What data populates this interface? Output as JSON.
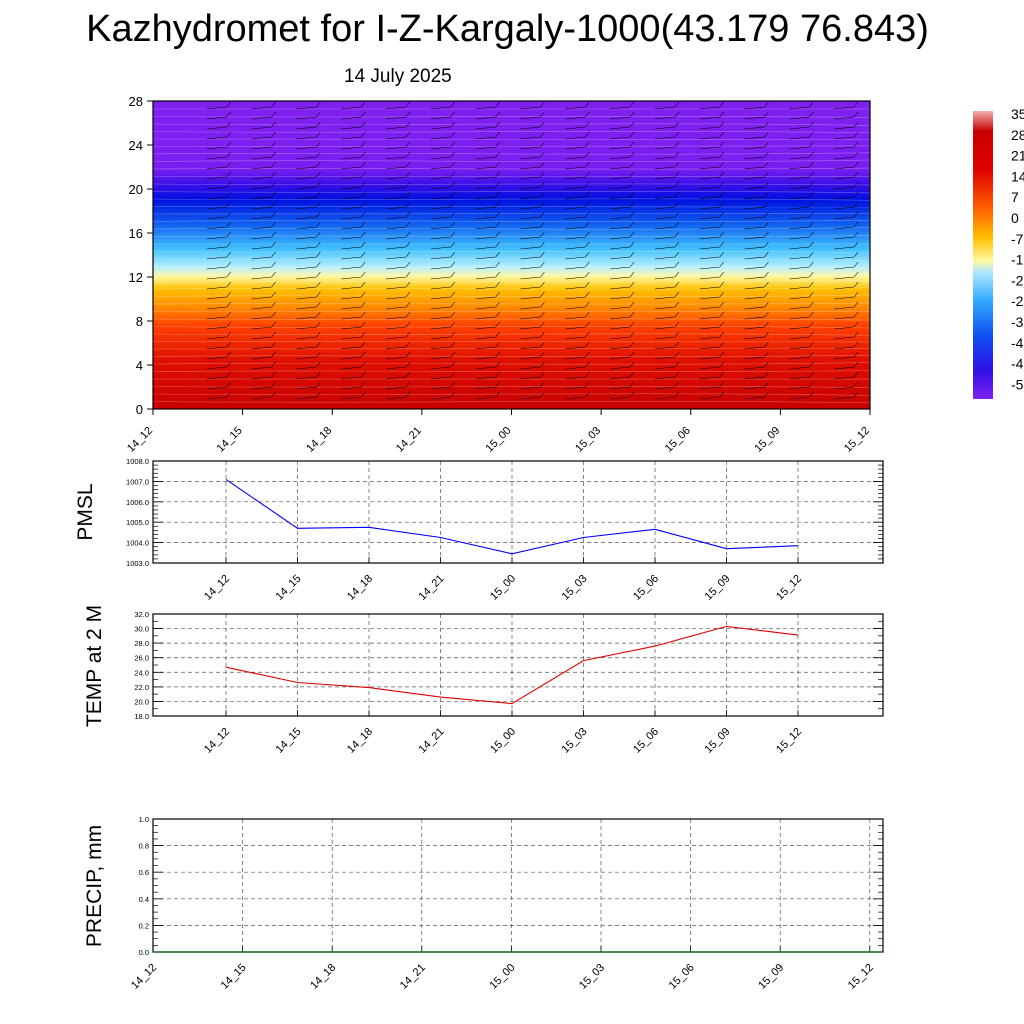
{
  "title": "Kazhydromet for I-Z-Kargaly-1000(43.179 76.843)",
  "subtitle": "14 July 2025",
  "colors": {
    "pmsl_line": "#0000ff",
    "temp_line": "#e00000",
    "precip_line": "#006400"
  },
  "chart_data": [
    {
      "type": "heatmap",
      "name": "temperature cross-section",
      "x_ticks": [
        "14_12",
        "14_15",
        "14_18",
        "14_21",
        "15_00",
        "15_03",
        "15_06",
        "15_09",
        "15_12"
      ],
      "y_ticks": [
        "0",
        "4",
        "8",
        "12",
        "16",
        "20",
        "24",
        "28"
      ],
      "ylim": [
        0,
        28
      ],
      "colorbar_labels": [
        "35",
        "28",
        "21",
        "14",
        "7",
        "0",
        "-7",
        "-1",
        "-2",
        "-2",
        "-3",
        "-4",
        "-4",
        "-5"
      ],
      "grid": false
    },
    {
      "type": "line",
      "ylabel": "PMSL",
      "ylim": [
        1003.0,
        1008.0
      ],
      "y_ticks": [
        "1003.0",
        "1004.0",
        "1005.0",
        "1006.0",
        "1007.0",
        "1008.0"
      ],
      "x_ticks": [
        "14_12",
        "14_15",
        "14_18",
        "14_21",
        "15_00",
        "15_03",
        "15_06",
        "15_09",
        "15_12"
      ],
      "values": [
        1007.1,
        1004.7,
        1004.75,
        1004.25,
        1003.45,
        1004.25,
        1004.65,
        1003.7,
        1003.85
      ],
      "grid": true
    },
    {
      "type": "line",
      "ylabel": "TEMP at 2 M",
      "ylim": [
        18.0,
        32.0
      ],
      "y_ticks": [
        "18.0",
        "20.0",
        "22.0",
        "24.0",
        "26.0",
        "28.0",
        "30.0",
        "32.0"
      ],
      "x_ticks": [
        "14_12",
        "14_15",
        "14_18",
        "14_21",
        "15_00",
        "15_03",
        "15_06",
        "15_09",
        "15_12"
      ],
      "values": [
        24.7,
        22.6,
        21.9,
        20.6,
        19.7,
        25.6,
        27.6,
        30.3,
        29.1
      ],
      "grid": true
    },
    {
      "type": "line",
      "ylabel": "PRECIP, mm",
      "ylim": [
        0.0,
        1.0
      ],
      "y_ticks": [
        "0.0",
        "0.2",
        "0.4",
        "0.6",
        "0.8",
        "1.0"
      ],
      "x_ticks": [
        "14_12",
        "14_15",
        "14_18",
        "14_21",
        "15_00",
        "15_03",
        "15_06",
        "15_09",
        "15_12"
      ],
      "values": [
        0,
        0,
        0,
        0,
        0,
        0,
        0,
        0,
        0
      ],
      "grid": true
    }
  ]
}
